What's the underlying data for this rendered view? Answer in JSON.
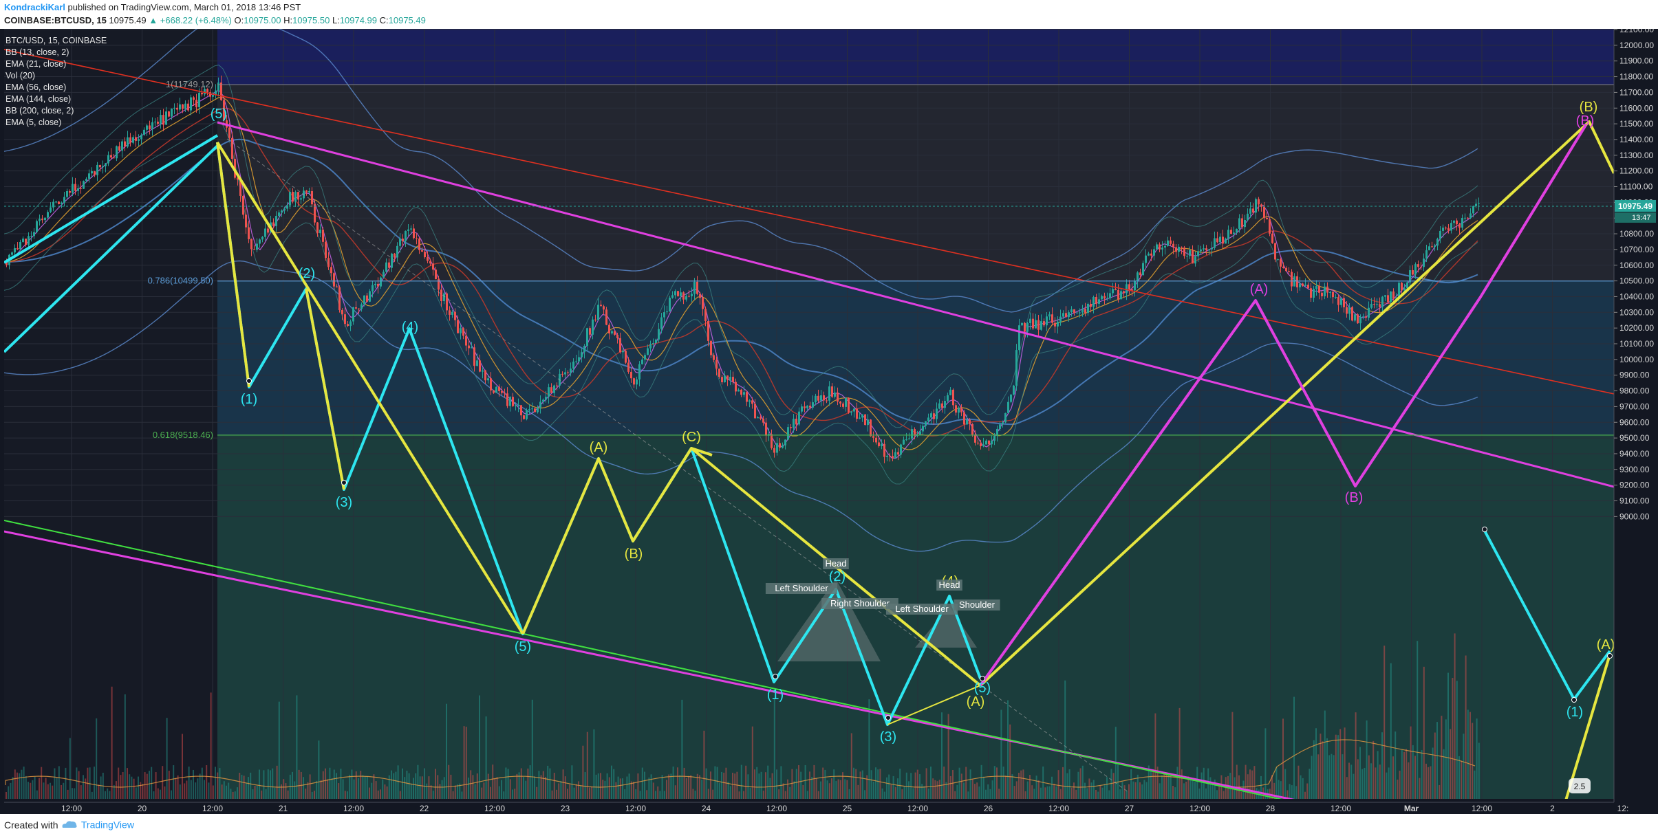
{
  "header": {
    "author": "KondrackiKarl",
    "published": "published on TradingView.com, March 01, 2018 13:46 PST",
    "symbol_line_prefix": "COINBASE:BTCUSD, 15",
    "last": "10975.49",
    "change": "+668.22 (+6.48%)",
    "o_label": "O:",
    "o": "10975.00",
    "h_label": "H:",
    "h": "10975.50",
    "l_label": "L:",
    "l": "10974.99",
    "c_label": "C:",
    "c": "10975.49"
  },
  "legend": {
    "title": "BTC/USD, 15, COINBASE",
    "studies": [
      "BB (13, close, 2)",
      "EMA (21, close)",
      "Vol (20)",
      "EMA (56, close)",
      "EMA (144, close)",
      "BB (200, close, 2)",
      "EMA (5, close)"
    ]
  },
  "footer": {
    "created_with": "Created with",
    "brand": "TradingView"
  },
  "colors": {
    "background": "#131722",
    "cyan": "#2ee6f0",
    "yellow": "#e6e640",
    "magenta": "#e040e0",
    "red": "#e03020",
    "green": "#40e040",
    "bb": "#5b8bd0",
    "up": "#26a69a",
    "down": "#ef5350"
  },
  "chart_data": {
    "type": "candlestick",
    "title": "BTC/USD, 15, COINBASE",
    "ylim": [
      8900,
      12150
    ],
    "y_ticks": [
      "12100.00",
      "12000.00",
      "11900.00",
      "11800.00",
      "11700.00",
      "11600.00",
      "11500.00",
      "11400.00",
      "11300.00",
      "11200.00",
      "11100.00",
      "11000.00",
      "10900.00",
      "10800.00",
      "10700.00",
      "10600.00",
      "10500.00",
      "10400.00",
      "10300.00",
      "10200.00",
      "10100.00",
      "10000.00",
      "9900.00",
      "9800.00",
      "9700.00",
      "9600.00",
      "9500.00",
      "9400.00",
      "9300.00",
      "9200.00",
      "9100.00",
      "9000.00"
    ],
    "x_ticks": [
      "12:00",
      "20",
      "12:00",
      "21",
      "12:00",
      "22",
      "12:00",
      "23",
      "12:00",
      "24",
      "12:00",
      "25",
      "12:00",
      "26",
      "12:00",
      "27",
      "12:00",
      "28",
      "12:00",
      "Mar",
      "12:00",
      "2",
      "12:"
    ],
    "last_price_label": "10975.49",
    "countdown_label": "13:47",
    "fib_levels": [
      {
        "label": "1(11749.12)",
        "value": 11749.12
      },
      {
        "label": "0.786(10499.50)",
        "value": 10499.5
      },
      {
        "label": "0.618(9518.46)",
        "value": 9518.46
      }
    ],
    "wave_labels": [
      "(5)",
      "(1)",
      "(2)",
      "(3)",
      "(4)",
      "(5)",
      "(A)",
      "(B)",
      "(C)",
      "(1)",
      "(2)",
      "(3)",
      "(4)",
      "(5)",
      "(A)",
      "(A)",
      "(B)",
      "(B)",
      "(B)",
      "(1)",
      "(A)"
    ],
    "pattern_labels": [
      "Left Shoulder",
      "Head",
      "Right Shoulder",
      "Left Shoulder",
      "Head",
      "Shoulder"
    ],
    "volume_badge": "2.5"
  }
}
